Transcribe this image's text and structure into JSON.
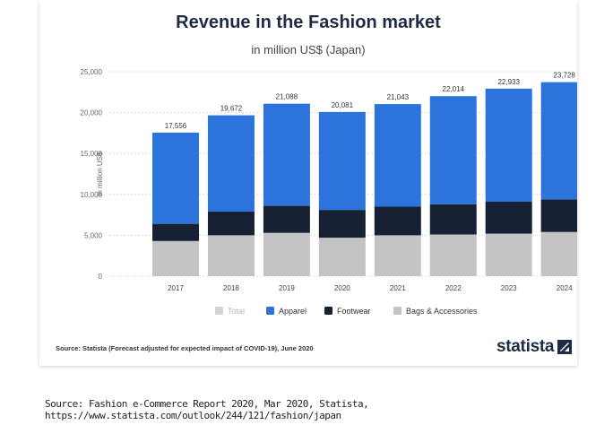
{
  "chart_data": {
    "type": "bar",
    "stacked": true,
    "title": "Revenue in the Fashion market",
    "subtitle": "in million US$ (Japan)",
    "ylabel": "in million US$",
    "xlabel": "",
    "ylim": [
      0,
      25000
    ],
    "yticks": [
      "0",
      "5,000",
      "10,000",
      "15,000",
      "20,000",
      "25,000"
    ],
    "categories": [
      "2017",
      "2018",
      "2019",
      "2020",
      "2021",
      "2022",
      "2023",
      "2024"
    ],
    "totals": [
      17556,
      19672,
      21088,
      20081,
      21043,
      22014,
      22933,
      23728
    ],
    "total_labels": [
      "17,556",
      "19,672",
      "21,088",
      "20,081",
      "21,043",
      "22,014",
      "22,933",
      "23,728"
    ],
    "series": [
      {
        "name": "Bags & Accessories",
        "color": "#c4c4c4",
        "values": [
          4300,
          5000,
          5300,
          4700,
          5000,
          5100,
          5200,
          5400
        ]
      },
      {
        "name": "Footwear",
        "color": "#162234",
        "values": [
          2100,
          2900,
          3300,
          3400,
          3500,
          3700,
          3900,
          4000
        ]
      },
      {
        "name": "Apparel",
        "color": "#2c74dc",
        "values": [
          11156,
          11772,
          12488,
          11981,
          12543,
          13214,
          13833,
          14328
        ]
      }
    ],
    "legend": [
      {
        "name": "Total",
        "color": "#d4d4d4",
        "muted": true
      },
      {
        "name": "Apparel",
        "color": "#2c74dc",
        "muted": false
      },
      {
        "name": "Footwear",
        "color": "#162234",
        "muted": false
      },
      {
        "name": "Bags & Accessories",
        "color": "#c4c4c4",
        "muted": false
      }
    ],
    "legend_position": "bottom",
    "grid": true
  },
  "source_note": "Source: Statista (Forecast adjusted for expected impact of COVID-19), June 2020",
  "logo_text": "statista",
  "footer_source": "Source: Fashion e-Commerce Report 2020, Mar 2020, Statista, https://www.statista.com/outlook/244/121/fashion/japan"
}
